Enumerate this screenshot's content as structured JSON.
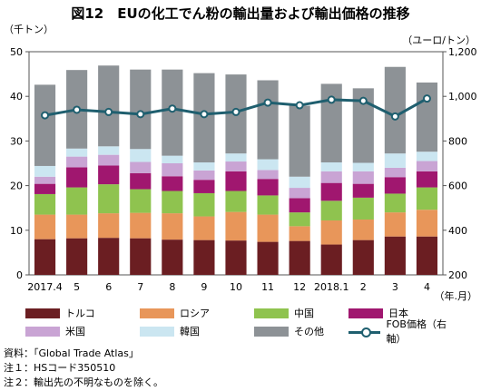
{
  "title": "図12　EUの化工でん粉の輸出量および輸出価格の推移",
  "left_unit": "（千トン）",
  "right_unit": "（ユーロ/トン）",
  "x_unit": "（年.月）",
  "chart_data": {
    "type": "bar",
    "stacked": true,
    "categories": [
      "2017.4",
      "5",
      "6",
      "7",
      "8",
      "9",
      "10",
      "11",
      "12",
      "2018.1",
      "2",
      "3",
      "4"
    ],
    "ylim": [
      0,
      50
    ],
    "yticks": [
      0,
      10,
      20,
      30,
      40,
      50
    ],
    "y2lim": [
      200,
      1200
    ],
    "y2ticks": [
      "200",
      "400",
      "600",
      "800",
      "1,000",
      "1,200"
    ],
    "grid": false,
    "legend_position": "bottom",
    "series": [
      {
        "name": "トルコ",
        "color": "#6b1e22",
        "values": [
          8.0,
          8.2,
          8.3,
          8.2,
          7.9,
          7.8,
          7.7,
          7.4,
          7.6,
          6.8,
          7.8,
          8.6,
          8.6
        ]
      },
      {
        "name": "ロシア",
        "color": "#e8965a",
        "values": [
          5.5,
          5.3,
          5.5,
          5.7,
          5.9,
          5.3,
          6.4,
          6.1,
          3.3,
          5.4,
          4.6,
          5.4,
          6.0
        ]
      },
      {
        "name": "中国",
        "color": "#8fc34f",
        "values": [
          4.6,
          6.1,
          6.5,
          5.3,
          5.0,
          5.2,
          4.7,
          4.3,
          3.1,
          4.4,
          4.9,
          4.2,
          5.0
        ]
      },
      {
        "name": "日本",
        "color": "#a0176f",
        "values": [
          2.3,
          4.5,
          4.2,
          3.6,
          3.3,
          3.0,
          4.4,
          3.7,
          3.2,
          4.0,
          3.1,
          3.7,
          3.6
        ]
      },
      {
        "name": "米国",
        "color": "#c9a4d4",
        "values": [
          1.6,
          2.4,
          2.4,
          2.5,
          2.9,
          2.1,
          2.2,
          2.0,
          2.3,
          2.6,
          2.8,
          2.1,
          2.3
        ]
      },
      {
        "name": "韓国",
        "color": "#cbe6f1",
        "values": [
          2.4,
          1.8,
          1.9,
          2.9,
          1.7,
          1.8,
          1.8,
          2.4,
          2.5,
          2.0,
          1.9,
          3.2,
          2.1
        ]
      },
      {
        "name": "その他",
        "color": "#8d9296",
        "values": [
          18.2,
          17.6,
          18.1,
          17.8,
          19.3,
          20.0,
          17.7,
          17.7,
          15.9,
          17.6,
          16.7,
          19.4,
          15.5
        ]
      }
    ],
    "line": {
      "name": "FOB価格（右軸）",
      "axis": "right",
      "color": "#1f5f6f",
      "values": [
        915,
        940,
        930,
        920,
        945,
        920,
        930,
        972,
        960,
        985,
        980,
        910,
        990
      ]
    }
  },
  "notes": [
    "資料：「Global Trade Atlas」",
    "注１：HSコード350510",
    "注２：輸出先の不明なものを除く。"
  ]
}
